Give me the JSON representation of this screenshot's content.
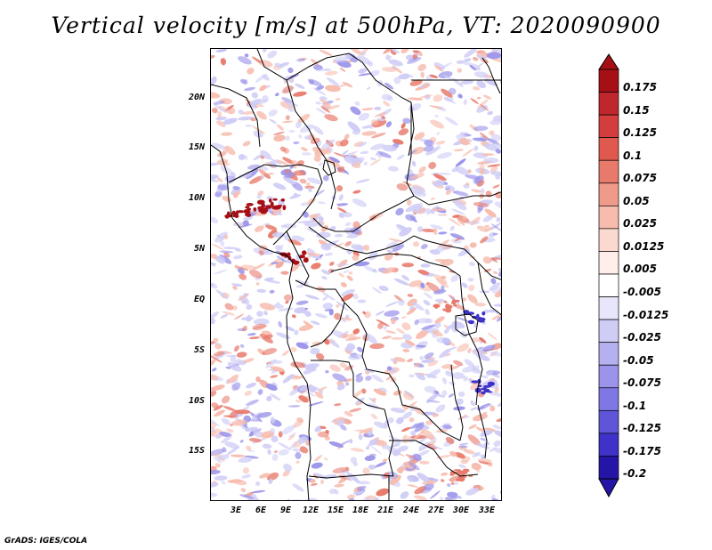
{
  "title": "Vertical velocity [m/s] at 500hPa, VT: 2020090900",
  "footer": "GrADS: IGES/COLA",
  "map": {
    "lat_ticks": [
      "20N",
      "15N",
      "10N",
      "5N",
      "EQ",
      "5S",
      "10S",
      "15S"
    ],
    "lon_ticks": [
      "3E",
      "6E",
      "9E",
      "12E",
      "15E",
      "18E",
      "21E",
      "24E",
      "27E",
      "30E",
      "33E"
    ]
  },
  "colorbar": {
    "levels": [
      "0.175",
      "0.15",
      "0.125",
      "0.1",
      "0.075",
      "0.05",
      "0.025",
      "0.0125",
      "0.005",
      "-0.005",
      "-0.0125",
      "-0.025",
      "-0.05",
      "-0.075",
      "-0.1",
      "-0.125",
      "-0.175",
      "-0.2"
    ],
    "colors": [
      "#a50f15",
      "#c0262d",
      "#d43d3d",
      "#e0594f",
      "#e87a6b",
      "#f09a8a",
      "#f7bcae",
      "#fbd9cf",
      "#ffeeea",
      "#ffffff",
      "#e7e6fb",
      "#cfcdf6",
      "#b5b1f0",
      "#9b94ea",
      "#7f77e3",
      "#5f55d8",
      "#3e32c8",
      "#2515a6"
    ]
  },
  "field_colors": {
    "pos_light": "#f7bcae",
    "pos_mid": "#e87a6b",
    "pos_dark": "#a50f15",
    "neg_light": "#cfcdf6",
    "neg_mid": "#9b94ea",
    "neg_dark": "#3e32c8",
    "neutral": "#ffffff"
  }
}
